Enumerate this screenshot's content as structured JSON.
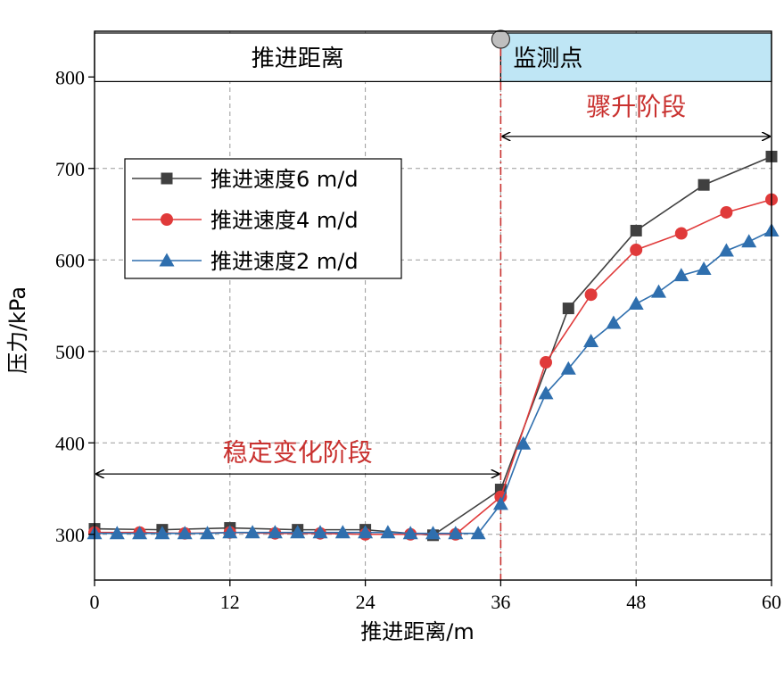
{
  "chart_data": {
    "type": "line",
    "title": "",
    "xlabel": "推进距离/m",
    "ylabel": "压力/kPa",
    "xlim": [
      0,
      60
    ],
    "ylim": [
      250,
      850
    ],
    "xticks": [
      0,
      12,
      24,
      36,
      48,
      60
    ],
    "yticks": [
      300,
      400,
      500,
      600,
      700,
      800
    ],
    "grid": true,
    "legend_position": "upper-left",
    "colors": {
      "series_6": "#404040",
      "series_4": "#e03a3a",
      "series_2": "#2f6fae",
      "monitor_fill": "#bfe6f5",
      "annotation": "#c9312f",
      "marker_point": "#bfbfbf"
    },
    "series": [
      {
        "name": "推进速度6 m/d",
        "marker": "square",
        "x": [
          0,
          6,
          12,
          18,
          24,
          30,
          36,
          42,
          48,
          54,
          60
        ],
        "y": [
          306,
          305,
          307,
          305,
          305,
          299,
          349,
          547,
          632,
          682,
          713
        ]
      },
      {
        "name": "推进速度4 m/d",
        "marker": "circle",
        "x": [
          0,
          4,
          8,
          12,
          16,
          20,
          24,
          28,
          32,
          36,
          40,
          44,
          48,
          52,
          56,
          60
        ],
        "y": [
          302,
          302,
          301,
          302,
          301,
          301,
          300,
          300,
          300,
          341,
          488,
          562,
          611,
          629,
          652,
          666
        ]
      },
      {
        "name": "推进速度2 m/d",
        "marker": "triangle",
        "x": [
          0,
          2,
          4,
          6,
          8,
          10,
          12,
          14,
          16,
          18,
          20,
          22,
          24,
          26,
          28,
          30,
          32,
          34,
          36,
          38,
          40,
          42,
          44,
          46,
          48,
          50,
          52,
          54,
          56,
          58,
          60
        ],
        "y": [
          301,
          301,
          301,
          301,
          301,
          301,
          302,
          302,
          302,
          302,
          302,
          302,
          302,
          302,
          301,
          301,
          301,
          301,
          333,
          399,
          454,
          481,
          511,
          531,
          552,
          565,
          583,
          590,
          610,
          620,
          632
        ]
      }
    ],
    "banner": {
      "left_label": "推进距离",
      "right_label": "监测点"
    },
    "monitor_x": 36,
    "annotations": {
      "rise_label": "骤升阶段",
      "stable_label": "稳定变化阶段",
      "stable_arrow_y": 366,
      "rise_arrow_y": 735,
      "rise_text_y": 768,
      "stable_text_y": 390
    }
  }
}
